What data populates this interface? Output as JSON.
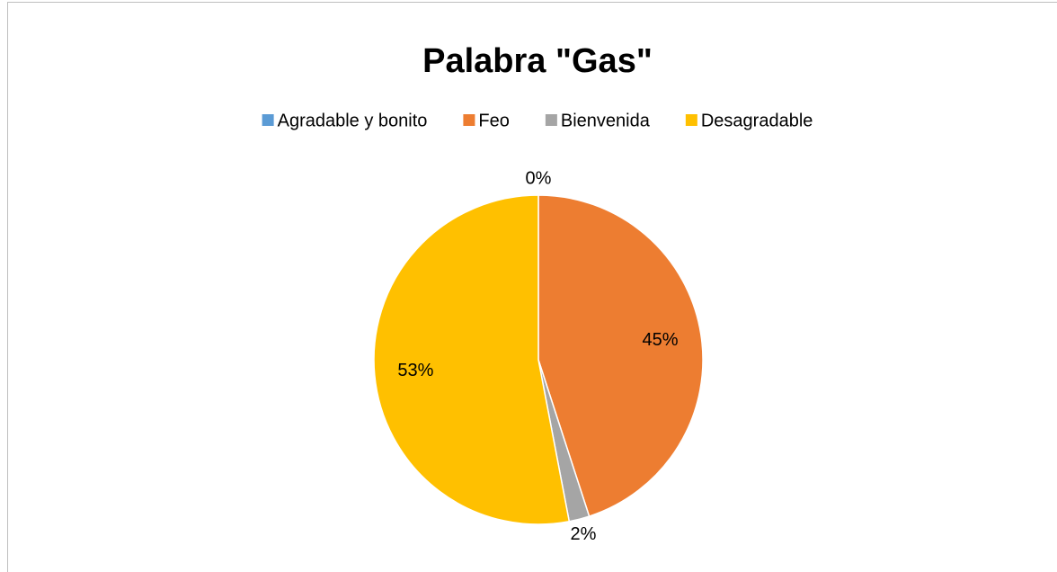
{
  "chart_data": {
    "type": "pie",
    "title": "Palabra \"Gas\"",
    "categories": [
      "Agradable y bonito",
      "Feo",
      "Bienvenida",
      "Desagradable"
    ],
    "values": [
      0,
      45,
      2,
      53
    ],
    "value_labels": [
      "0%",
      "45%",
      "2%",
      "53%"
    ],
    "colors": [
      "#5b9bd5",
      "#ed7d31",
      "#a5a5a5",
      "#ffc000"
    ],
    "legend": "top"
  }
}
